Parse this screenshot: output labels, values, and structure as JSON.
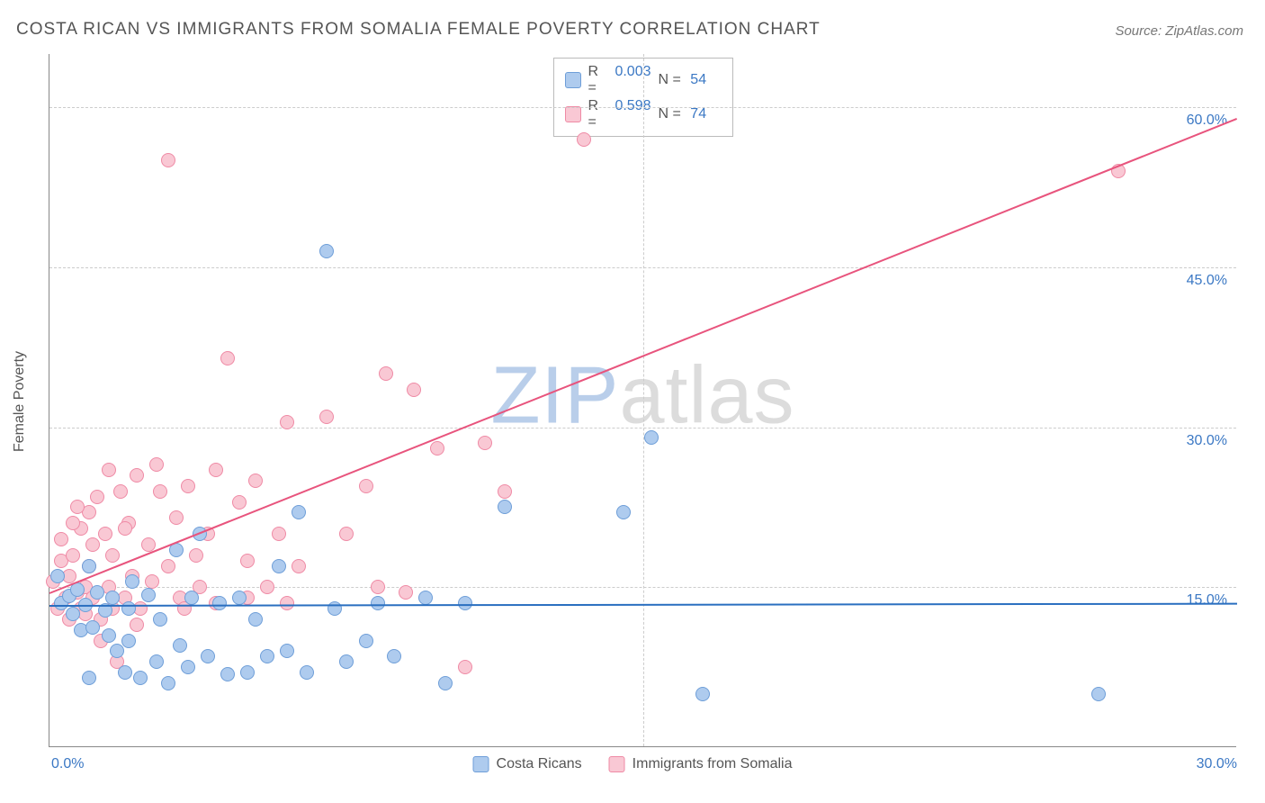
{
  "title": "COSTA RICAN VS IMMIGRANTS FROM SOMALIA FEMALE POVERTY CORRELATION CHART",
  "source": "Source: ZipAtlas.com",
  "ylabel": "Female Poverty",
  "watermark": {
    "zip": "ZIP",
    "atlas": "atlas"
  },
  "chart": {
    "type": "scatter",
    "xlim": [
      0,
      30
    ],
    "ylim": [
      0,
      65
    ],
    "xticks": [
      {
        "v": 0,
        "label": "0.0%"
      },
      {
        "v": 30,
        "label": "30.0%"
      }
    ],
    "yticks": [
      {
        "v": 15,
        "label": "15.0%"
      },
      {
        "v": 30,
        "label": "30.0%"
      },
      {
        "v": 45,
        "label": "45.0%"
      },
      {
        "v": 60,
        "label": "60.0%"
      }
    ],
    "xgrid": [
      15
    ],
    "background_color": "#ffffff",
    "grid_color": "#cccccc",
    "axis_color": "#888888",
    "tick_label_color": "#3b78c4",
    "marker_radius": 8,
    "marker_border_width": 1
  },
  "series": [
    {
      "id": "costa_ricans",
      "label": "Costa Ricans",
      "color_fill": "#aecbee",
      "color_stroke": "#6e9ed8",
      "line_color": "#2a6fc0",
      "r": "0.003",
      "n": "54",
      "trend": {
        "x1": 0,
        "y1": 13.3,
        "x2": 30,
        "y2": 13.5
      },
      "points": [
        [
          0.2,
          16.0
        ],
        [
          0.3,
          13.5
        ],
        [
          0.5,
          14.2
        ],
        [
          0.6,
          12.5
        ],
        [
          0.7,
          14.8
        ],
        [
          0.8,
          11.0
        ],
        [
          0.9,
          13.3
        ],
        [
          1.0,
          17.0
        ],
        [
          1.1,
          11.2
        ],
        [
          1.2,
          14.5
        ],
        [
          1.4,
          12.8
        ],
        [
          1.5,
          10.5
        ],
        [
          1.6,
          14.0
        ],
        [
          1.7,
          9.0
        ],
        [
          1.9,
          7.0
        ],
        [
          2.0,
          13.0
        ],
        [
          2.1,
          15.5
        ],
        [
          2.3,
          6.5
        ],
        [
          2.5,
          14.3
        ],
        [
          2.7,
          8.0
        ],
        [
          2.8,
          12.0
        ],
        [
          3.0,
          6.0
        ],
        [
          3.2,
          18.5
        ],
        [
          3.3,
          9.5
        ],
        [
          3.5,
          7.5
        ],
        [
          3.6,
          14.0
        ],
        [
          3.8,
          20.0
        ],
        [
          4.0,
          8.5
        ],
        [
          4.3,
          13.5
        ],
        [
          4.5,
          6.8
        ],
        [
          4.8,
          14.0
        ],
        [
          5.0,
          7.0
        ],
        [
          5.2,
          12.0
        ],
        [
          5.5,
          8.5
        ],
        [
          5.8,
          17.0
        ],
        [
          6.0,
          9.0
        ],
        [
          6.3,
          22.0
        ],
        [
          6.5,
          7.0
        ],
        [
          7.0,
          46.5
        ],
        [
          7.2,
          13.0
        ],
        [
          7.5,
          8.0
        ],
        [
          8.0,
          10.0
        ],
        [
          8.3,
          13.5
        ],
        [
          8.7,
          8.5
        ],
        [
          9.5,
          14.0
        ],
        [
          10.0,
          6.0
        ],
        [
          10.5,
          13.5
        ],
        [
          11.5,
          22.5
        ],
        [
          14.5,
          22.0
        ],
        [
          15.2,
          29.0
        ],
        [
          16.5,
          5.0
        ],
        [
          26.5,
          5.0
        ],
        [
          1.0,
          6.5
        ],
        [
          2.0,
          10.0
        ]
      ]
    },
    {
      "id": "somalia",
      "label": "Immigrants from Somalia",
      "color_fill": "#f9c8d4",
      "color_stroke": "#ef8aa5",
      "line_color": "#e8547d",
      "r": "0.598",
      "n": "74",
      "trend": {
        "x1": 0,
        "y1": 14.5,
        "x2": 30,
        "y2": 59.0
      },
      "points": [
        [
          0.1,
          15.5
        ],
        [
          0.2,
          13.0
        ],
        [
          0.3,
          17.5
        ],
        [
          0.4,
          14.0
        ],
        [
          0.5,
          16.0
        ],
        [
          0.5,
          12.0
        ],
        [
          0.6,
          18.0
        ],
        [
          0.7,
          14.5
        ],
        [
          0.8,
          20.5
        ],
        [
          0.8,
          13.0
        ],
        [
          0.9,
          15.0
        ],
        [
          1.0,
          22.0
        ],
        [
          1.0,
          17.0
        ],
        [
          1.1,
          14.0
        ],
        [
          1.2,
          23.5
        ],
        [
          1.3,
          12.0
        ],
        [
          1.4,
          20.0
        ],
        [
          1.5,
          26.0
        ],
        [
          1.5,
          15.0
        ],
        [
          1.6,
          18.0
        ],
        [
          1.7,
          8.0
        ],
        [
          1.8,
          24.0
        ],
        [
          1.9,
          14.0
        ],
        [
          2.0,
          21.0
        ],
        [
          2.1,
          16.0
        ],
        [
          2.2,
          25.5
        ],
        [
          2.3,
          13.0
        ],
        [
          2.5,
          19.0
        ],
        [
          2.6,
          15.5
        ],
        [
          2.8,
          24.0
        ],
        [
          3.0,
          55.0
        ],
        [
          3.0,
          17.0
        ],
        [
          3.2,
          21.5
        ],
        [
          3.3,
          14.0
        ],
        [
          3.5,
          24.5
        ],
        [
          3.7,
          18.0
        ],
        [
          3.8,
          15.0
        ],
        [
          4.0,
          20.0
        ],
        [
          4.2,
          13.5
        ],
        [
          4.5,
          36.5
        ],
        [
          4.8,
          23.0
        ],
        [
          5.0,
          17.5
        ],
        [
          5.2,
          25.0
        ],
        [
          5.5,
          15.0
        ],
        [
          5.8,
          20.0
        ],
        [
          6.0,
          30.5
        ],
        [
          6.3,
          17.0
        ],
        [
          7.0,
          31.0
        ],
        [
          7.5,
          20.0
        ],
        [
          8.0,
          24.5
        ],
        [
          8.3,
          15.0
        ],
        [
          8.5,
          35.0
        ],
        [
          9.0,
          14.5
        ],
        [
          9.2,
          33.5
        ],
        [
          9.8,
          28.0
        ],
        [
          10.5,
          7.5
        ],
        [
          11.0,
          28.5
        ],
        [
          11.5,
          24.0
        ],
        [
          13.5,
          57.0
        ],
        [
          0.3,
          19.5
        ],
        [
          0.6,
          21.0
        ],
        [
          0.9,
          12.5
        ],
        [
          1.1,
          19.0
        ],
        [
          1.3,
          10.0
        ],
        [
          1.6,
          13.0
        ],
        [
          1.9,
          20.5
        ],
        [
          2.2,
          11.5
        ],
        [
          2.7,
          26.5
        ],
        [
          3.4,
          13.0
        ],
        [
          4.2,
          26.0
        ],
        [
          5.0,
          14.0
        ],
        [
          6.0,
          13.5
        ],
        [
          27.0,
          54.0
        ],
        [
          0.7,
          22.5
        ]
      ]
    }
  ],
  "legend_top": [
    {
      "series": 0,
      "r_prefix": "R =",
      "n_prefix": "N ="
    },
    {
      "series": 1,
      "r_prefix": "R =",
      "n_prefix": "N ="
    }
  ]
}
